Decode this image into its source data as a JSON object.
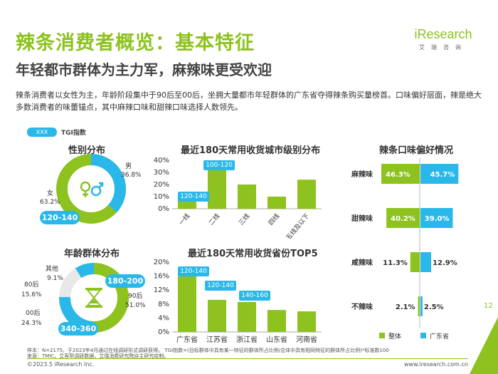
{
  "page": {
    "title": "辣条消费者概览：基本特征",
    "subtitle": "年轻都市群体为主力军，麻辣味更受欢迎",
    "description": "辣条消费者以女性为主，年龄阶段集中于90后至00后，坐拥大量都市年轻群体的广东省夺得辣条购买量榜首。口味偏好层面，辣是绝大多数消费者的味蕾锚点，其中麻辣口味和甜辣口味选择人数领先。",
    "logo": "iResearch",
    "logo_sub": "艾瑞咨询",
    "page_number": "12"
  },
  "legend": {
    "tag": "XXX",
    "label": "TGI指数"
  },
  "colors": {
    "green": "#8dc21f",
    "blue": "#29b8e9",
    "gray": "#e8e8e8"
  },
  "gender": {
    "title": "性别分布",
    "male_label": "男",
    "male_pct": "36.8%",
    "female_label": "女",
    "female_pct": "63.2%",
    "tgi": "120-140"
  },
  "age": {
    "title": "年龄群体分布",
    "other_label": "其他",
    "other_pct": "9.1%",
    "g80_label": "80后",
    "g80_pct": "15.6%",
    "g00_label": "00后",
    "g00_pct": "24.3%",
    "g90_label": "90后",
    "g90_pct": "51.0%",
    "tgi_90": "180-200",
    "tgi_00": "340-360"
  },
  "city_tier": {
    "title": "最近180天常用收货城市级别分布",
    "y_ticks": [
      "40%",
      "30%",
      "20%",
      "10%",
      "0%"
    ],
    "tgi": [
      "120-140",
      "100-120"
    ]
  },
  "province": {
    "title": "最近180天常用收货省份TOP5",
    "y_ticks": [
      "20%",
      "16%",
      "12%",
      "8%",
      "4%",
      "0%"
    ],
    "tgi": [
      "120-140",
      "120-140",
      "140-160"
    ]
  },
  "flavor": {
    "title": "辣条口味偏好情况",
    "legend_total": "整体",
    "legend_gd": "广东省",
    "rows": [
      {
        "label": "麻辣味",
        "total_label": "46.3%",
        "gd_label": "45.7%"
      },
      {
        "label": "甜辣味",
        "total_label": "40.2%",
        "gd_label": "39.0%"
      },
      {
        "label": "咸辣味",
        "total_label": "11.3%",
        "gd_label": "12.9%"
      },
      {
        "label": "不辣味",
        "total_label": "2.1%",
        "gd_label": "2.5%"
      }
    ]
  },
  "chart_data": [
    {
      "type": "bar",
      "title": "最近180天常用收货城市级别分布",
      "categories": [
        "一线",
        "二线",
        "三线",
        "四线",
        "五线及以下"
      ],
      "values": [
        13,
        33,
        20,
        10,
        24
      ],
      "ylim": [
        0,
        40
      ],
      "ylabel": "%"
    },
    {
      "type": "bar",
      "title": "最近180天常用收货省份TOP5",
      "categories": [
        "广东省",
        "江苏省",
        "浙江省",
        "山东省",
        "河南省"
      ],
      "values": [
        16,
        9.2,
        8.6,
        6.3,
        5.9
      ],
      "ylim": [
        0,
        20
      ],
      "ylabel": "%"
    },
    {
      "type": "bar",
      "title": "辣条口味偏好情况",
      "categories": [
        "麻辣味",
        "甜辣味",
        "咸辣味",
        "不辣味"
      ],
      "series": [
        {
          "name": "整体",
          "values": [
            46.3,
            40.2,
            11.3,
            2.1
          ]
        },
        {
          "name": "广东省",
          "values": [
            45.7,
            39.0,
            12.9,
            2.5
          ]
        }
      ]
    },
    {
      "type": "pie",
      "title": "性别分布",
      "categories": [
        "男",
        "女"
      ],
      "values": [
        36.8,
        63.2
      ]
    },
    {
      "type": "pie",
      "title": "年龄群体分布",
      "categories": [
        "90后",
        "00后",
        "80后",
        "其他"
      ],
      "values": [
        51.0,
        24.3,
        15.6,
        9.1
      ]
    }
  ],
  "footer": {
    "note": "样本：N=2175，于2023年4月通过在线调研形式调研获得。  TGI指数=(目标群体中具有某一特征的群体所占比例/总体中具有相同特征的群体所占比例)*标准数100",
    "source": "来源：TMIC，艾客帮调研数据，艾瑞消费研究院自主研究绘制。",
    "copyright": "©2023.5 iResearch Inc.",
    "url": "www.iresearch.com.cn"
  }
}
